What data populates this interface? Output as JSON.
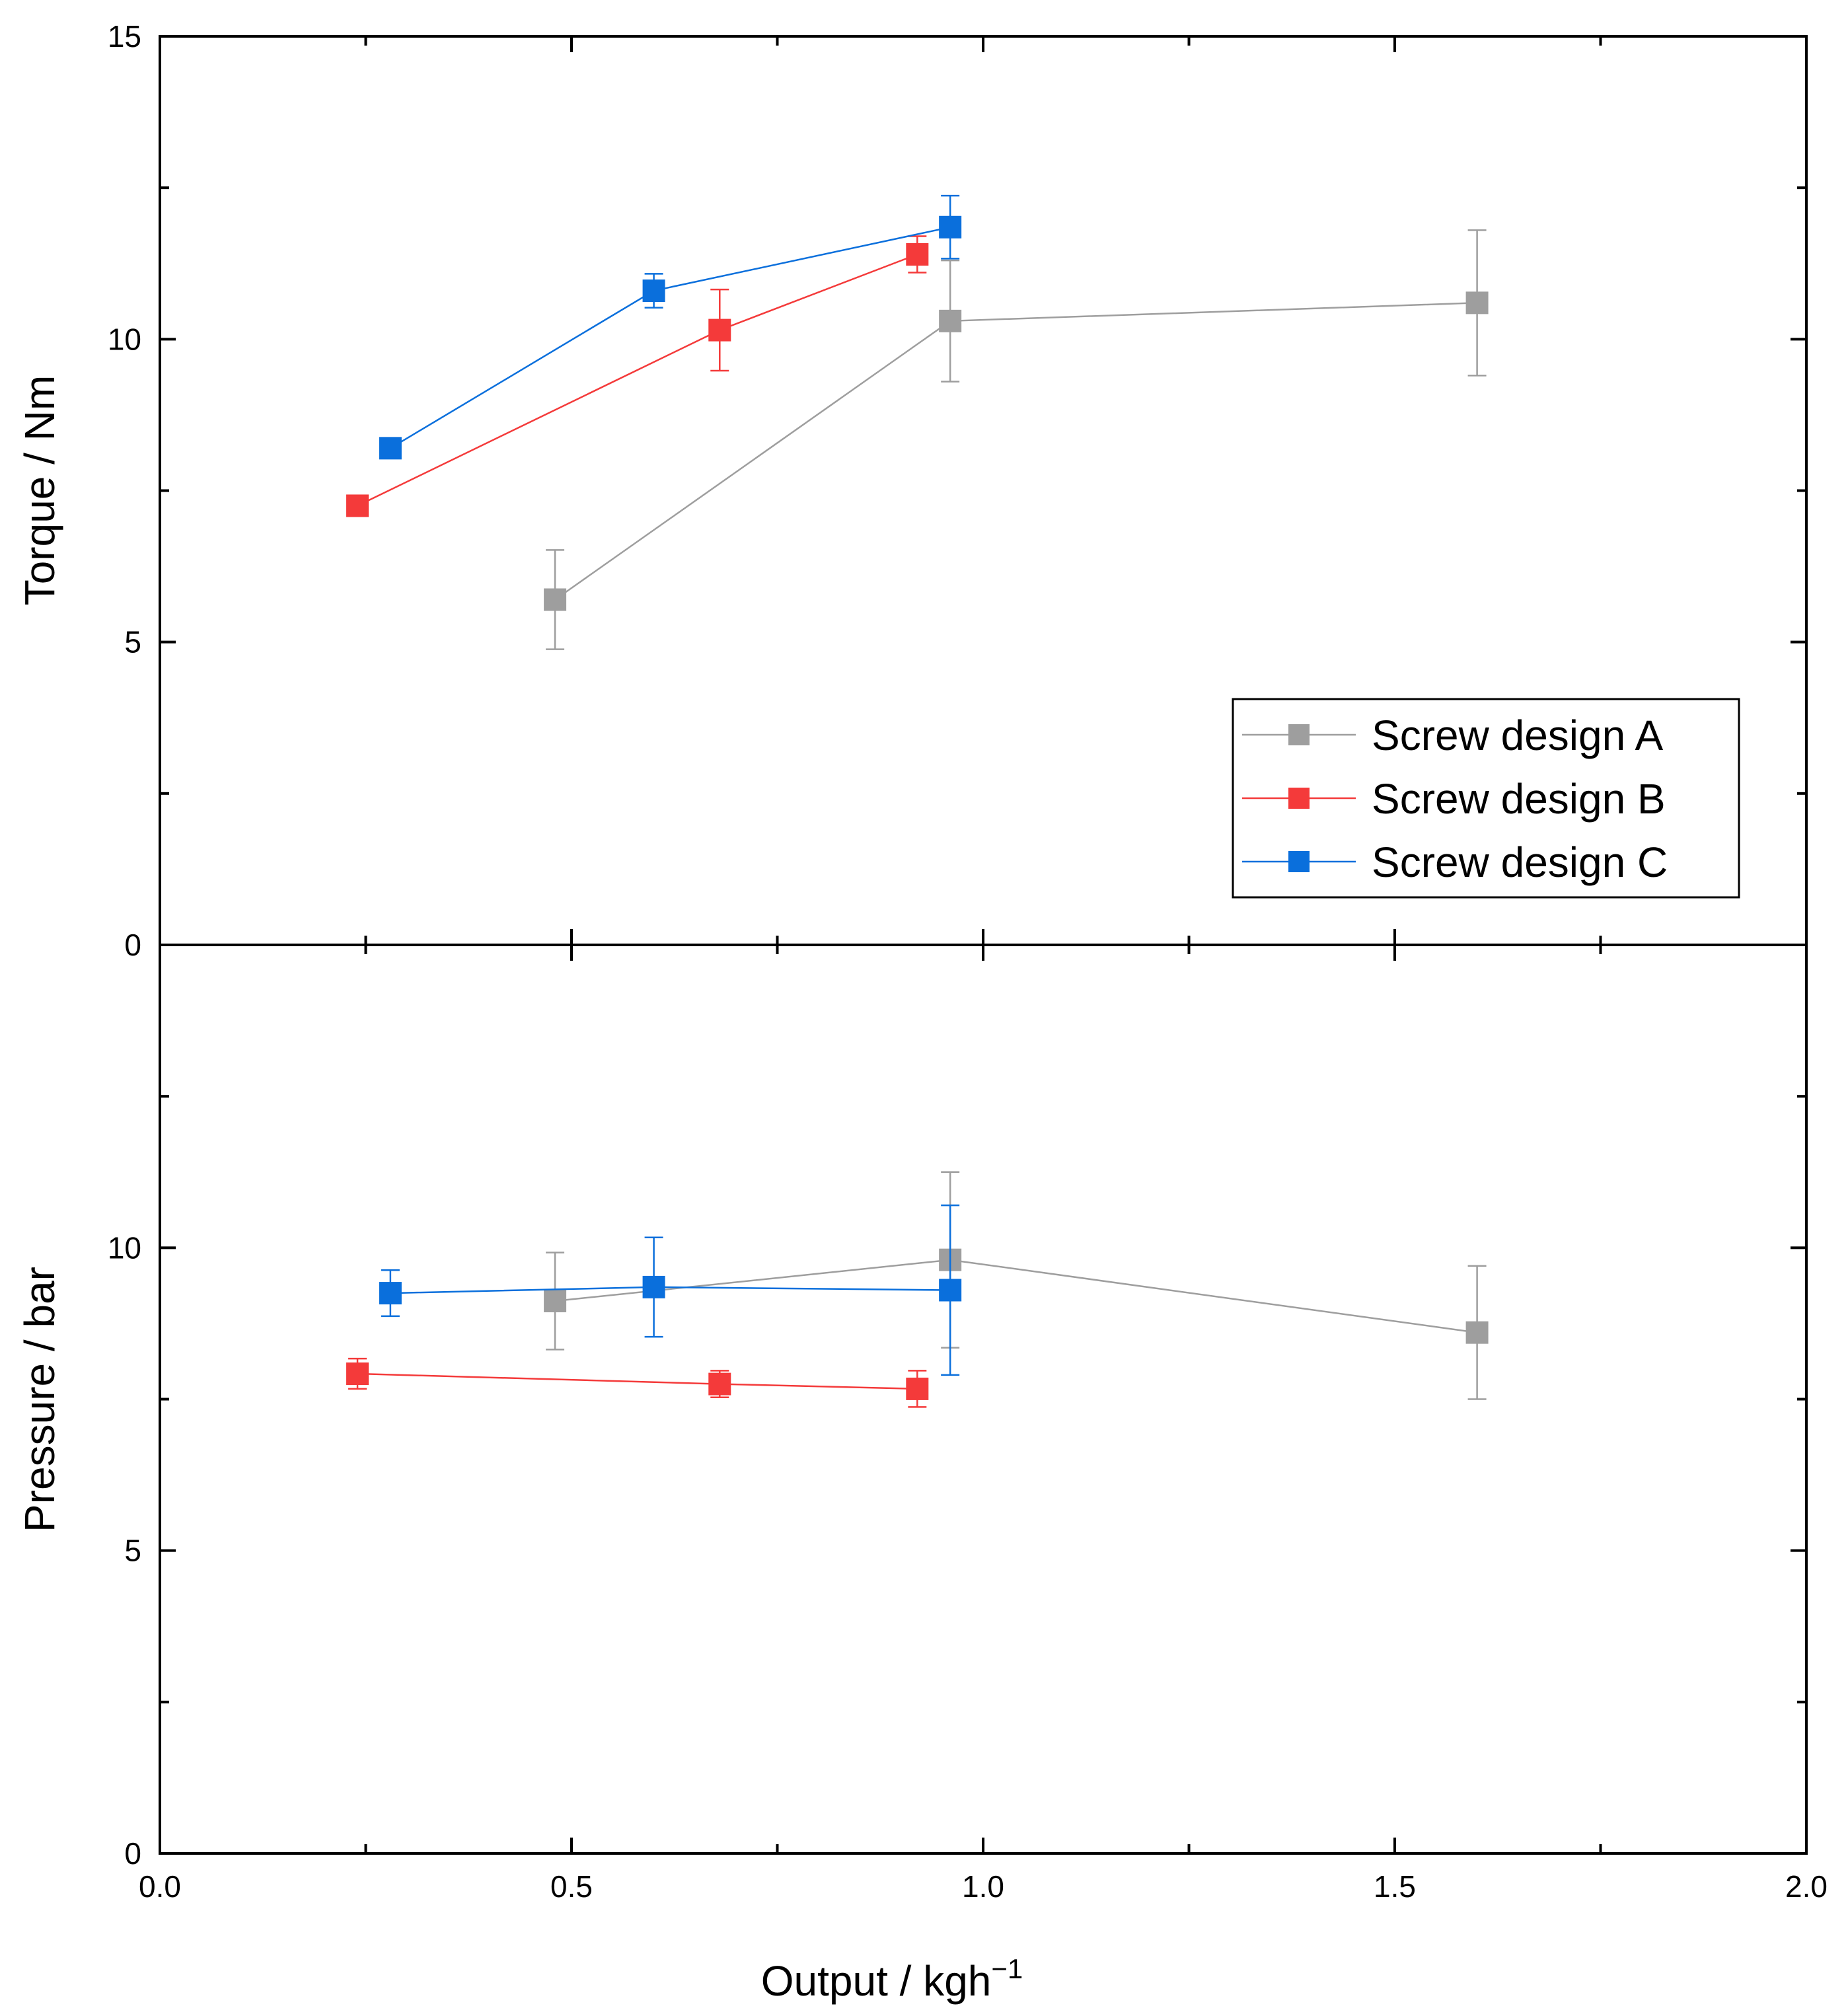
{
  "chart_data": [
    {
      "type": "line",
      "panel": "top",
      "ylabel": "Torque / Nm",
      "ylim": [
        0,
        15
      ],
      "yticks": [
        "0",
        "5",
        "10",
        "15"
      ],
      "xlim": [
        0,
        2
      ],
      "series": [
        {
          "name": "Screw design A",
          "color": "#9e9e9e",
          "points": [
            {
              "x": 0.48,
              "y": 5.7,
              "err": 0.82
            },
            {
              "x": 0.96,
              "y": 10.3,
              "err": 1.0
            },
            {
              "x": 1.6,
              "y": 10.6,
              "err": 1.2
            }
          ]
        },
        {
          "name": "Screw design B",
          "color": "#f43a3a",
          "points": [
            {
              "x": 0.24,
              "y": 7.25,
              "err": 0
            },
            {
              "x": 0.68,
              "y": 10.15,
              "err": 0.67
            },
            {
              "x": 0.92,
              "y": 11.4,
              "err": 0.3
            }
          ]
        },
        {
          "name": "Screw design C",
          "color": "#0a6fdc",
          "points": [
            {
              "x": 0.28,
              "y": 8.2,
              "err": 0
            },
            {
              "x": 0.6,
              "y": 10.8,
              "err": 0.28
            },
            {
              "x": 0.96,
              "y": 11.85,
              "err": 0.52
            }
          ]
        }
      ]
    },
    {
      "type": "line",
      "panel": "bottom",
      "ylabel": "Pressure / bar",
      "xlabel": "Output / kgh",
      "xlabel_sup": "−1",
      "ylim": [
        0,
        15
      ],
      "yticks": [
        "0",
        "5",
        "10"
      ],
      "xlim": [
        0,
        2
      ],
      "xticks": [
        "0.0",
        "0.5",
        "1.0",
        "1.5",
        "2.0"
      ],
      "series": [
        {
          "name": "Screw design A",
          "color": "#9e9e9e",
          "points": [
            {
              "x": 0.48,
              "y": 9.12,
              "err": 0.8
            },
            {
              "x": 0.96,
              "y": 9.8,
              "err": 1.45
            },
            {
              "x": 1.6,
              "y": 8.6,
              "err": 1.1
            }
          ]
        },
        {
          "name": "Screw design B",
          "color": "#f43a3a",
          "points": [
            {
              "x": 0.24,
              "y": 7.92,
              "err": 0.25
            },
            {
              "x": 0.68,
              "y": 7.75,
              "err": 0.22
            },
            {
              "x": 0.92,
              "y": 7.67,
              "err": 0.3
            }
          ]
        },
        {
          "name": "Screw design C",
          "color": "#0a6fdc",
          "points": [
            {
              "x": 0.28,
              "y": 9.25,
              "err": 0.38
            },
            {
              "x": 0.6,
              "y": 9.35,
              "err": 0.82
            },
            {
              "x": 0.96,
              "y": 9.3,
              "err": 1.4
            }
          ]
        }
      ]
    }
  ],
  "legend": {
    "placement": "bottom-right of top panel",
    "entries": [
      {
        "label": "Screw design A",
        "color": "#9e9e9e"
      },
      {
        "label": "Screw design B",
        "color": "#f43a3a"
      },
      {
        "label": "Screw design C",
        "color": "#0a6fdc"
      }
    ]
  }
}
